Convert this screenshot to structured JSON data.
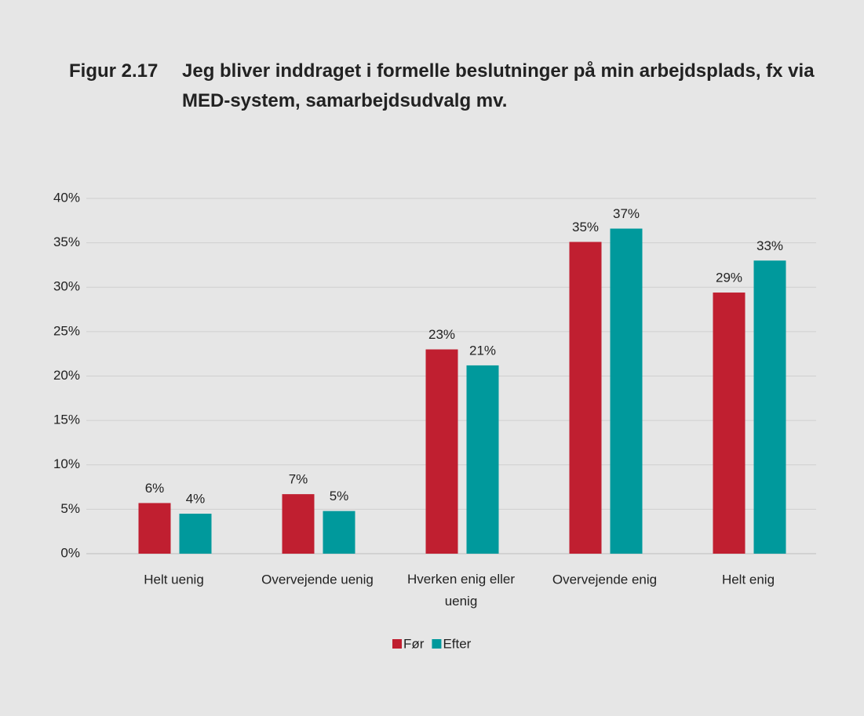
{
  "chart_data": {
    "type": "bar",
    "figure_label": "Figur 2.17",
    "title": "Jeg bliver inddraget i formelle beslutninger på min arbejdsplads, fx via MED-system, samarbejdsudvalg mv.",
    "categories": [
      "Helt uenig",
      "Overvejende uenig",
      "Hverken enig eller uenig",
      "Overvejende enig",
      "Helt enig"
    ],
    "series": [
      {
        "name": "Før",
        "color": "#c01f30",
        "values": [
          5.7,
          6.7,
          23.0,
          35.1,
          29.4
        ],
        "value_labels": [
          "6%",
          "7%",
          "23%",
          "35%",
          "29%"
        ]
      },
      {
        "name": "Efter",
        "color": "#00999c",
        "values": [
          4.5,
          4.8,
          21.2,
          36.6,
          33.0
        ],
        "value_labels": [
          "4%",
          "5%",
          "21%",
          "37%",
          "33%"
        ]
      }
    ],
    "ylim": [
      0,
      40
    ],
    "yticks": [
      {
        "value": 0,
        "label": "0%"
      },
      {
        "value": 5,
        "label": "5%"
      },
      {
        "value": 10,
        "label": "10%"
      },
      {
        "value": 15,
        "label": "15%"
      },
      {
        "value": 20,
        "label": "20%"
      },
      {
        "value": 25,
        "label": "25%"
      },
      {
        "value": 30,
        "label": "30%"
      },
      {
        "value": 35,
        "label": "35%"
      },
      {
        "value": 40,
        "label": "40%"
      }
    ],
    "grid": true,
    "legend": "bottom"
  }
}
